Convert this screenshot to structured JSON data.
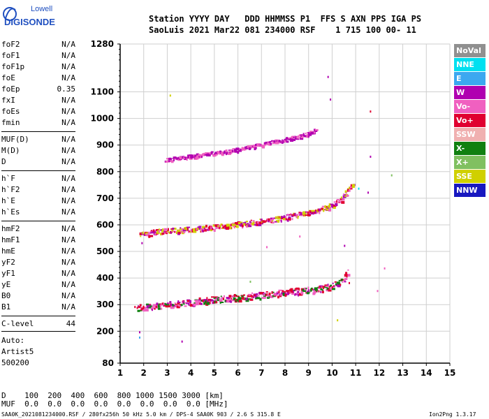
{
  "logo": {
    "line1": "Lowell",
    "line2": "DIGISONDE"
  },
  "header": {
    "line1": "Station YYYY DAY   DDD HHMMSS P1  FFS S AXN PPS IGA PS",
    "line2": "SaoLuis 2021 Mar22 081 234000 RSF    1 715 100 00- 11"
  },
  "params_group1": [
    {
      "name": "foF2",
      "value": "N/A"
    },
    {
      "name": "foF1",
      "value": "N/A"
    },
    {
      "name": "foF1p",
      "value": "N/A"
    },
    {
      "name": "foE",
      "value": "N/A"
    },
    {
      "name": "foEp",
      "value": "0.35"
    },
    {
      "name": "fxI",
      "value": "N/A"
    },
    {
      "name": "foEs",
      "value": "N/A"
    },
    {
      "name": "fmin",
      "value": "N/A"
    }
  ],
  "params_group2": [
    {
      "name": "MUF(D)",
      "value": "N/A"
    },
    {
      "name": "M(D)",
      "value": "N/A"
    },
    {
      "name": "D",
      "value": "N/A"
    }
  ],
  "params_group3": [
    {
      "name": "h`F",
      "value": "N/A"
    },
    {
      "name": "h`F2",
      "value": "N/A"
    },
    {
      "name": "h`E",
      "value": "N/A"
    },
    {
      "name": "h`Es",
      "value": "N/A"
    }
  ],
  "params_group4": [
    {
      "name": "hmF2",
      "value": "N/A"
    },
    {
      "name": "hmF1",
      "value": "N/A"
    },
    {
      "name": "hmE",
      "value": "N/A"
    },
    {
      "name": "yF2",
      "value": "N/A"
    },
    {
      "name": "yF1",
      "value": "N/A"
    },
    {
      "name": "yE",
      "value": "N/A"
    },
    {
      "name": "B0",
      "value": "N/A"
    },
    {
      "name": "B1",
      "value": "N/A"
    }
  ],
  "clevel": {
    "name": "C-level",
    "value": "44"
  },
  "auto": {
    "line1": "Auto:",
    "line2": "Artist5",
    "line3": "500200"
  },
  "legend": [
    {
      "label": "NoVal",
      "color": "#909090"
    },
    {
      "label": "NNE",
      "color": "#00e0f0"
    },
    {
      "label": "E",
      "color": "#3ca8f0"
    },
    {
      "label": "W",
      "color": "#b000b0"
    },
    {
      "label": "Vo-",
      "color": "#f060c0"
    },
    {
      "label": "Vo+",
      "color": "#e00030"
    },
    {
      "label": "SSW",
      "color": "#f0b0b0"
    },
    {
      "label": "X-",
      "color": "#108010"
    },
    {
      "label": "X+",
      "color": "#80c060"
    },
    {
      "label": "SSE",
      "color": "#d0d000"
    },
    {
      "label": "NNW",
      "color": "#1818c0"
    }
  ],
  "bottom": {
    "d_row": "D    100  200  400  600  800 1000 1500 3000 [km]",
    "muf_row": "MUF  0.0  0.0  0.0  0.0  0.0  0.0  0.0  0.0 [MHz]"
  },
  "footer": {
    "left": "SAA0K_2021081234000.RSF / 280fx256h 50 kHz 5.0 km / DPS-4 SAA0K 903 / 2.6 S 315.8 E",
    "right": "Ion2Png 1.3.17"
  },
  "chart_data": {
    "type": "scatter",
    "xlim": [
      1,
      15
    ],
    "ylim": [
      80,
      1280
    ],
    "x_ticks": [
      "1",
      "2",
      "3",
      "4",
      "5",
      "6",
      "7",
      "8",
      "9",
      "10",
      "11",
      "12",
      "13",
      "14",
      "15"
    ],
    "y_ticks": [
      {
        "value": 80,
        "label": "80"
      },
      {
        "value": 200,
        "label": "200"
      },
      {
        "value": 300,
        "label": "300"
      },
      {
        "value": 400,
        "label": "400"
      },
      {
        "value": 500,
        "label": "500"
      },
      {
        "value": 600,
        "label": "600"
      },
      {
        "value": 700,
        "label": "700"
      },
      {
        "value": 800,
        "label": "800"
      },
      {
        "value": 900,
        "label": "900"
      },
      {
        "value": 1000,
        "label": "1000"
      },
      {
        "value": 1100,
        "label": "1100"
      },
      {
        "value": 1280,
        "label": "1280"
      }
    ],
    "traces": [
      {
        "name": "F-trace",
        "colors": [
          "#e00030",
          "#f060c0",
          "#b000b0",
          "#108010"
        ],
        "points": [
          [
            1.7,
            290
          ],
          [
            2.2,
            295
          ],
          [
            2.8,
            300
          ],
          [
            3.4,
            305
          ],
          [
            4.0,
            312
          ],
          [
            4.6,
            318
          ],
          [
            5.2,
            322
          ],
          [
            5.8,
            328
          ],
          [
            6.4,
            333
          ],
          [
            7.0,
            338
          ],
          [
            7.6,
            345
          ],
          [
            8.2,
            350
          ],
          [
            8.8,
            355
          ],
          [
            9.4,
            360
          ],
          [
            9.9,
            370
          ],
          [
            10.2,
            380
          ],
          [
            10.5,
            400
          ],
          [
            10.7,
            430
          ]
        ],
        "spread": 12
      },
      {
        "name": "2F-trace",
        "colors": [
          "#b000b0",
          "#f060c0",
          "#d0d000",
          "#e00030"
        ],
        "points": [
          [
            1.8,
            565
          ],
          [
            2.5,
            575
          ],
          [
            3.2,
            580
          ],
          [
            4.0,
            585
          ],
          [
            4.8,
            592
          ],
          [
            5.6,
            600
          ],
          [
            6.4,
            608
          ],
          [
            7.2,
            617
          ],
          [
            8.0,
            630
          ],
          [
            8.8,
            645
          ],
          [
            9.5,
            660
          ],
          [
            10.0,
            675
          ],
          [
            10.4,
            700
          ],
          [
            10.7,
            740
          ],
          [
            10.9,
            765
          ]
        ],
        "spread": 10
      },
      {
        "name": "3F-trace",
        "colors": [
          "#b000b0",
          "#f060c0"
        ],
        "points": [
          [
            2.9,
            845
          ],
          [
            3.6,
            855
          ],
          [
            4.4,
            865
          ],
          [
            5.2,
            875
          ],
          [
            6.0,
            885
          ],
          [
            6.8,
            900
          ],
          [
            7.6,
            915
          ],
          [
            8.4,
            930
          ],
          [
            9.0,
            945
          ],
          [
            9.3,
            960
          ]
        ],
        "spread": 7
      }
    ],
    "scatter": [
      {
        "x": 1.8,
        "y": 180,
        "color": "#3ca8f0"
      },
      {
        "x": 1.8,
        "y": 200,
        "color": "#b000b0"
      },
      {
        "x": 3.6,
        "y": 165,
        "color": "#b000b0"
      },
      {
        "x": 9.8,
        "y": 1160,
        "color": "#b000b0"
      },
      {
        "x": 9.9,
        "y": 1075,
        "color": "#b000b0"
      },
      {
        "x": 11.6,
        "y": 1030,
        "color": "#e00030"
      },
      {
        "x": 11.6,
        "y": 860,
        "color": "#b000b0"
      },
      {
        "x": 12.5,
        "y": 790,
        "color": "#80c060"
      },
      {
        "x": 11.9,
        "y": 355,
        "color": "#f060c0"
      },
      {
        "x": 10.2,
        "y": 245,
        "color": "#d0d000"
      },
      {
        "x": 10.5,
        "y": 525,
        "color": "#b000b0"
      },
      {
        "x": 10.7,
        "y": 385,
        "color": "#e00030"
      },
      {
        "x": 11.5,
        "y": 725,
        "color": "#b000b0"
      },
      {
        "x": 11.1,
        "y": 740,
        "color": "#00e0f0"
      },
      {
        "x": 1.6,
        "y": 295,
        "color": "#e00030"
      },
      {
        "x": 1.9,
        "y": 535,
        "color": "#b000b0"
      },
      {
        "x": 3.1,
        "y": 1090,
        "color": "#d0d000"
      },
      {
        "x": 7.2,
        "y": 520,
        "color": "#f060c0"
      },
      {
        "x": 6.5,
        "y": 390,
        "color": "#80c060"
      },
      {
        "x": 8.6,
        "y": 560,
        "color": "#f060c0"
      },
      {
        "x": 12.2,
        "y": 440,
        "color": "#f060c0"
      }
    ]
  }
}
